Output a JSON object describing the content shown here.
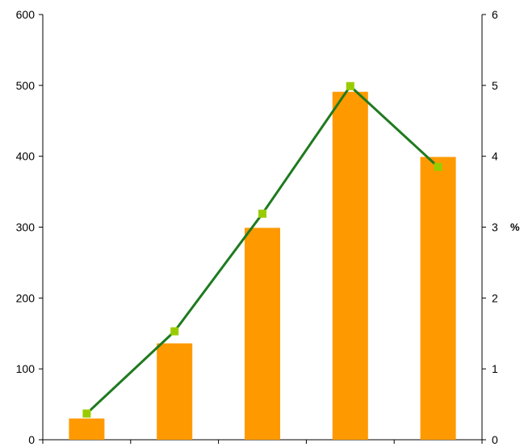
{
  "chart_data": {
    "type": "bar",
    "categories": [
      "",
      "",
      "",
      "",
      ""
    ],
    "title": "",
    "xlabel": "",
    "ylabel": "",
    "ylabel_right": "%",
    "ylim": [
      0,
      600
    ],
    "ylim_right": [
      0,
      6
    ],
    "yticks": [
      "0",
      "100",
      "200",
      "300",
      "400",
      "500",
      "600"
    ],
    "yticks_right": [
      "0",
      "1",
      "2",
      "3",
      "4",
      "5",
      "6"
    ],
    "grid": false,
    "legend": "none",
    "series": [
      {
        "type": "bar",
        "axis": "left",
        "color": "#FF9900",
        "values": [
          30,
          136,
          299,
          491,
          399
        ]
      },
      {
        "type": "line",
        "axis": "right",
        "color": "#1F7A1F",
        "marker_color": "#99CC00",
        "values": [
          0.37,
          1.53,
          3.19,
          4.99,
          3.85
        ]
      }
    ]
  }
}
